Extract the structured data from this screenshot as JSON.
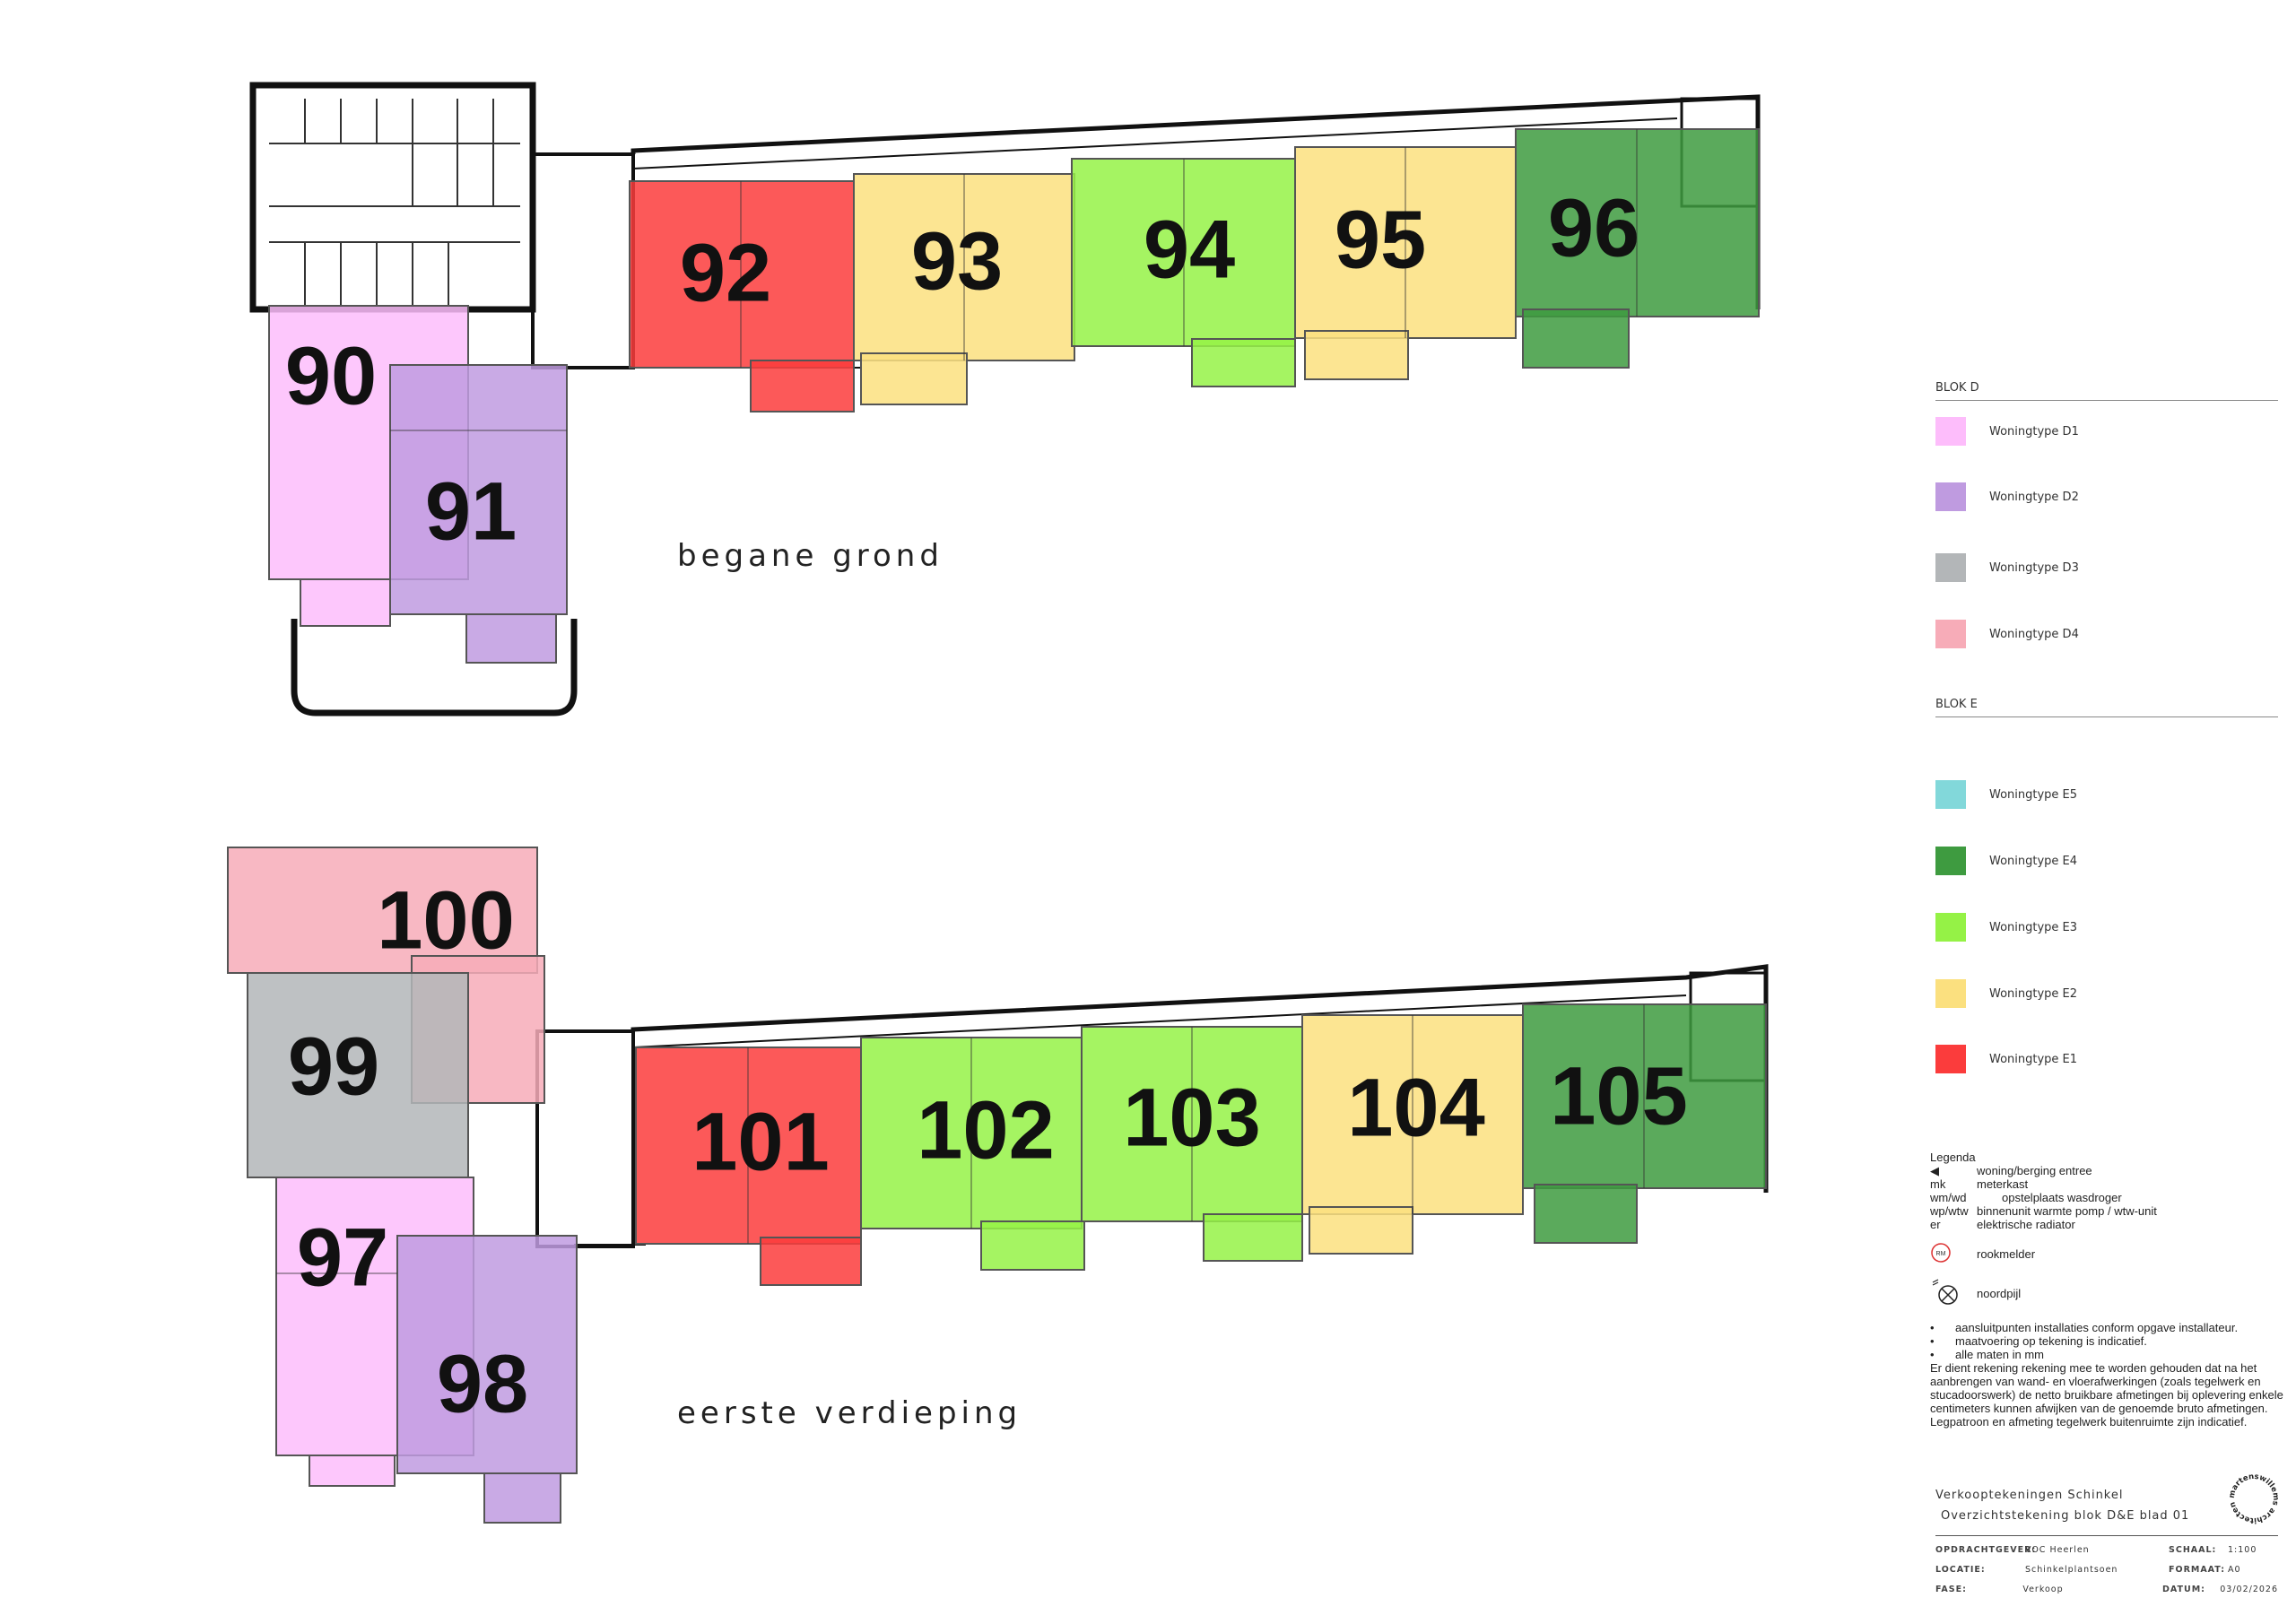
{
  "floors": [
    {
      "label": "begane grond",
      "units": [
        {
          "number": "90",
          "type": "D1"
        },
        {
          "number": "91",
          "type": "D2"
        },
        {
          "number": "92",
          "type": "E1"
        },
        {
          "number": "93",
          "type": "E2"
        },
        {
          "number": "94",
          "type": "E3"
        },
        {
          "number": "95",
          "type": "E2"
        },
        {
          "number": "96",
          "type": "E4"
        }
      ]
    },
    {
      "label": "eerste verdieping",
      "units": [
        {
          "number": "100",
          "type": "D4"
        },
        {
          "number": "99",
          "type": "D3"
        },
        {
          "number": "97",
          "type": "D1"
        },
        {
          "number": "98",
          "type": "D2"
        },
        {
          "number": "101",
          "type": "E1"
        },
        {
          "number": "102",
          "type": "E3"
        },
        {
          "number": "103",
          "type": "E3"
        },
        {
          "number": "104",
          "type": "E2"
        },
        {
          "number": "105",
          "type": "E4"
        }
      ]
    }
  ],
  "legend": {
    "blok_d": {
      "title": "BLOK D",
      "items": [
        {
          "code": "D1",
          "label": "Woningtype D1",
          "color": "#fdbdfb"
        },
        {
          "code": "D2",
          "label": "Woningtype D2",
          "color": "#bf9be0"
        },
        {
          "code": "D3",
          "label": "Woningtype D3",
          "color": "#b3b6b8"
        },
        {
          "code": "D4",
          "label": "Woningtype D4",
          "color": "#f7acb8"
        }
      ]
    },
    "blok_e": {
      "title": "BLOK E",
      "items": [
        {
          "code": "E5",
          "label": "Woningtype E5",
          "color": "#82d8da"
        },
        {
          "code": "E4",
          "label": "Woningtype E4",
          "color": "#3e9b40"
        },
        {
          "code": "E3",
          "label": "Woningtype E3",
          "color": "#95f246"
        },
        {
          "code": "E2",
          "label": "Woningtype E2",
          "color": "#fbe07f"
        },
        {
          "code": "E1",
          "label": "Woningtype E1",
          "color": "#fb3c3c"
        }
      ]
    }
  },
  "notes": {
    "title": "Legenda",
    "abbreviations": [
      {
        "key": "",
        "value": "woning/berging entree"
      },
      {
        "key": "mk",
        "value": "meterkast"
      },
      {
        "key": "wm/wd",
        "value": "opstelplaats wasdroger"
      },
      {
        "key": "wp/wtw",
        "value": "binnenunit warmte pomp / wtw-unit"
      },
      {
        "key": "er",
        "value": "elektrische radiator"
      }
    ],
    "smoke_symbol": "RM",
    "smoke_label": "rookmelder",
    "north_label": "noordpijl",
    "bullets": [
      "aansluitpunten installaties conform opgave installateur.",
      "maatvoering op tekening is indicatief.",
      "alle maten in mm"
    ],
    "paragraph1": "Er dient rekening rekening mee te worden gehouden dat na het aanbrengen van wand- en vloerafwerkingen (zoals tegelwerk en stucadoorswerk) de netto bruikbare afmetingen bij oplevering enkele centimeters kunnen afwijken van de genoemde bruto afmetingen.",
    "paragraph2": "Legpatroon en afmeting tegelwerk buitenruimte zijn indicatief."
  },
  "title_block": {
    "title": "Verkooptekeningen Schinkel",
    "subtitle": "Overzichtstekening blok D&E blad 01",
    "opdrachtgever_label": "OPDRACHTGEVER:",
    "opdrachtgever": "VOC Heerlen",
    "locatie_label": "LOCATIE:",
    "locatie": "Schinkelplantsoen",
    "fase_label": "FASE:",
    "fase": "Verkoop",
    "schaal_label": "SCHAAL:",
    "schaal": "1:100",
    "formaat_label": "FORMAAT:",
    "formaat": "A0",
    "datum_label": "DATUM:",
    "datum": "03/02/2026",
    "logo_text": "martenswillems architecten"
  }
}
